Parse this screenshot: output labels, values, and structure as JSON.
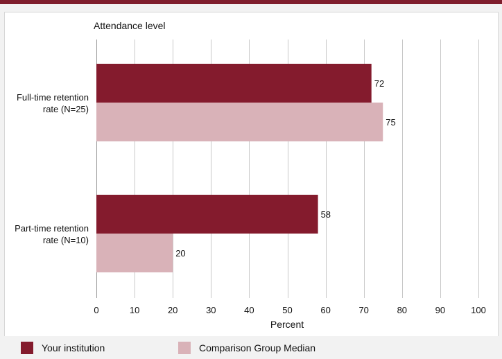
{
  "chart_data": {
    "type": "bar",
    "orientation": "horizontal",
    "title": "Attendance level",
    "categories": [
      "Full-time retention\nrate (N=25)",
      "Part-time retention\nrate (N=10)"
    ],
    "series": [
      {
        "name": "Your institution",
        "values": [
          72,
          58
        ],
        "color": "#841b2d"
      },
      {
        "name": "Comparison Group Median",
        "values": [
          75,
          20
        ],
        "color": "#d9b2b8"
      }
    ],
    "xlabel": "Percent",
    "ylabel": "",
    "xlim": [
      0,
      100
    ],
    "xticks": [
      0,
      10,
      20,
      30,
      40,
      50,
      60,
      70,
      80,
      90,
      100
    ],
    "grid": "vertical",
    "legend_position": "bottom"
  },
  "legend": {
    "items": [
      {
        "label": "Your institution",
        "color": "#841b2d"
      },
      {
        "label": "Comparison Group Median",
        "color": "#d9b2b8"
      }
    ]
  },
  "colors": {
    "accent": "#7f1d2d",
    "gridline": "#c8c8c8",
    "background": "#f2f2f2"
  }
}
